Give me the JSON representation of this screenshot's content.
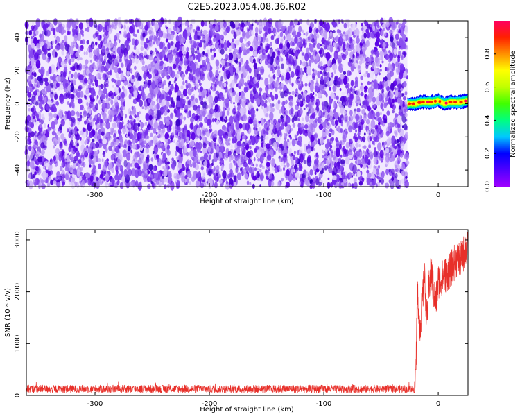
{
  "title": "C2E5.2023.054.08.36.R02",
  "chart_data": [
    {
      "type": "heatmap",
      "xlabel": "Height of straight line (km)",
      "ylabel": "Frequency (Hz)",
      "xlim": [
        -360,
        26
      ],
      "ylim": [
        -50,
        50
      ],
      "xticks": [
        -300,
        -200,
        -100,
        0
      ],
      "yticks": [
        -40,
        -20,
        0,
        20,
        40
      ],
      "grid": false,
      "noise_region_x": [
        -360,
        -27
      ],
      "signal": {
        "x": [
          -27,
          -20,
          -15,
          -10,
          -5,
          0,
          5,
          10,
          15,
          20,
          26
        ],
        "y": [
          0,
          0,
          1,
          1,
          1,
          2,
          0,
          1,
          1,
          1,
          2
        ]
      },
      "colorbar": {
        "label": "Normalized spectral amplitude",
        "range": [
          0,
          1
        ],
        "ticks": [
          0.0,
          0.2,
          0.4,
          0.6,
          0.8
        ],
        "tick_labels": [
          "0.0",
          "0.2",
          "0.4",
          "0.6",
          "0.8"
        ],
        "colors": [
          "#a000ff",
          "#5000ff",
          "#0000ff",
          "#00c8ff",
          "#00ff80",
          "#40ff00",
          "#c0ff00",
          "#ffff00",
          "#ff9000",
          "#ff2000",
          "#ff0060"
        ]
      }
    },
    {
      "type": "line",
      "xlabel": "Height of straight line (km)",
      "ylabel": "SNR (10 * v/v)",
      "xlim": [
        -360,
        26
      ],
      "ylim": [
        0,
        3200
      ],
      "xticks": [
        -300,
        -200,
        -100,
        0
      ],
      "yticks": [
        0,
        1000,
        2000,
        3000
      ],
      "grid": false,
      "color": "#e8302a",
      "baseline_range": [
        50,
        200
      ],
      "x": [
        -360,
        -20,
        -18,
        -16,
        -14,
        -12,
        -10,
        -8,
        -6,
        -4,
        -2,
        0,
        5,
        10,
        15,
        20,
        26
      ],
      "y": [
        150,
        150,
        2000,
        1300,
        1800,
        2300,
        1500,
        2100,
        2400,
        2000,
        1800,
        2200,
        2300,
        2400,
        2600,
        2650,
        2900
      ]
    }
  ]
}
